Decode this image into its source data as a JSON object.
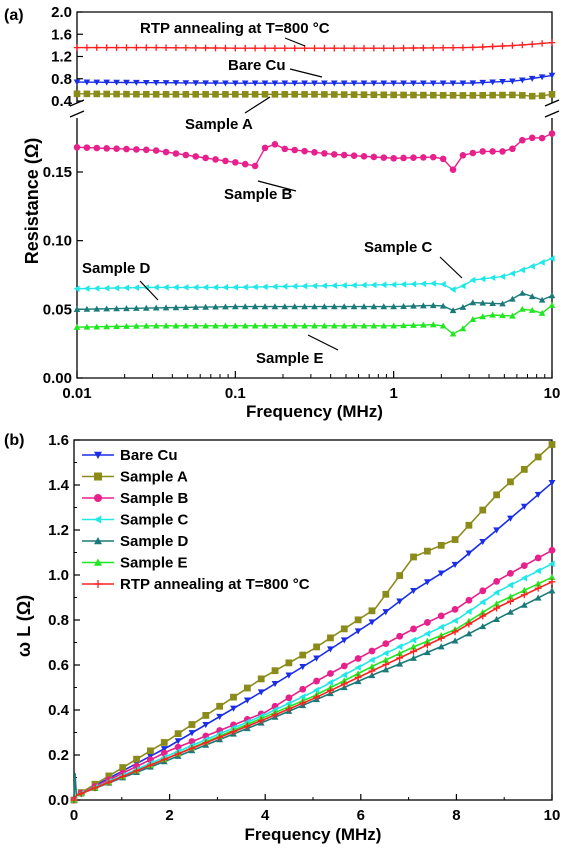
{
  "chart_data": [
    {
      "panel": "(a)",
      "type": "line",
      "xscale": "log",
      "xlabel": "Frequency (MHz)",
      "ylabel": "Resistance (Ω)",
      "xlim": [
        0.01,
        10
      ],
      "xticks": [
        "0.01",
        "0.1",
        "1",
        "10"
      ],
      "y_break": true,
      "ylim_lower": [
        0,
        0.19
      ],
      "ylim_upper": [
        0.4,
        2.0
      ],
      "yticks_lower": [
        "0.00",
        "0.05",
        "0.10",
        "0.15"
      ],
      "yticks_upper": [
        "0.4",
        "0.8",
        "1.2",
        "1.6",
        "2.0"
      ],
      "series": [
        {
          "name": "RTP annealing at T=800 °C",
          "color": "#ff2020",
          "marker": "plus",
          "x": [
            0.01,
            0.03,
            0.1,
            0.3,
            1,
            3,
            6,
            10
          ],
          "values": [
            1.36,
            1.36,
            1.35,
            1.35,
            1.35,
            1.36,
            1.4,
            1.45
          ]
        },
        {
          "name": "Bare Cu",
          "color": "#1a2ee8",
          "marker": "triangle-down",
          "x": [
            0.01,
            0.03,
            0.1,
            0.3,
            1,
            3,
            6,
            10
          ],
          "values": [
            0.74,
            0.73,
            0.72,
            0.72,
            0.72,
            0.72,
            0.76,
            0.86
          ]
        },
        {
          "name": "Sample A",
          "color": "#8b8b1a",
          "marker": "square",
          "x": [
            0.01,
            0.03,
            0.1,
            0.3,
            1,
            3,
            6,
            8,
            10
          ],
          "values": [
            0.53,
            0.52,
            0.52,
            0.52,
            0.51,
            0.5,
            0.51,
            0.48,
            0.52
          ]
        },
        {
          "name": "Sample B",
          "color": "#e8208c",
          "marker": "circle",
          "x": [
            0.01,
            0.03,
            0.1,
            0.14,
            0.16,
            0.2,
            0.4,
            1,
            2,
            2.4,
            2.7,
            3.5,
            5,
            6,
            7,
            8,
            9,
            10
          ],
          "values": [
            0.168,
            0.166,
            0.157,
            0.154,
            0.173,
            0.167,
            0.163,
            0.16,
            0.161,
            0.151,
            0.162,
            0.165,
            0.165,
            0.168,
            0.178,
            0.172,
            0.176,
            0.178
          ]
        },
        {
          "name": "Sample C",
          "color": "#20e8e8",
          "marker": "triangle-left",
          "x": [
            0.01,
            0.03,
            0.1,
            0.3,
            1,
            2,
            2.5,
            3,
            5,
            7,
            10
          ],
          "values": [
            0.065,
            0.066,
            0.066,
            0.067,
            0.068,
            0.069,
            0.063,
            0.071,
            0.074,
            0.08,
            0.087
          ]
        },
        {
          "name": "Sample D",
          "color": "#1a7a7a",
          "marker": "triangle-up",
          "x": [
            0.01,
            0.03,
            0.1,
            0.3,
            1,
            2,
            2.5,
            3,
            5,
            7,
            8,
            10
          ],
          "values": [
            0.05,
            0.051,
            0.052,
            0.052,
            0.052,
            0.053,
            0.048,
            0.055,
            0.054,
            0.064,
            0.055,
            0.06
          ]
        },
        {
          "name": "Sample E",
          "color": "#20e820",
          "marker": "triangle-up",
          "x": [
            0.01,
            0.03,
            0.1,
            0.3,
            1,
            2,
            2.5,
            3,
            4,
            6,
            7,
            8,
            10
          ],
          "values": [
            0.037,
            0.038,
            0.038,
            0.038,
            0.038,
            0.039,
            0.03,
            0.042,
            0.046,
            0.045,
            0.055,
            0.044,
            0.053
          ]
        }
      ],
      "annotations": [
        "RTP annealing at T=800 °C",
        "Bare Cu",
        "Sample A",
        "Sample B",
        "Sample C",
        "Sample D",
        "Sample E"
      ]
    },
    {
      "panel": "(b)",
      "type": "line",
      "xlabel": "Frequency (MHz)",
      "ylabel": "ω L (Ω)",
      "xlim": [
        0,
        10
      ],
      "ylim": [
        0,
        1.6
      ],
      "xticks": [
        "0",
        "2",
        "4",
        "6",
        "8",
        "10"
      ],
      "yticks": [
        "0.0",
        "0.2",
        "0.4",
        "0.6",
        "0.8",
        "1.0",
        "1.2",
        "1.4",
        "1.6"
      ],
      "legend": "top-left",
      "series": [
        {
          "name": "Bare Cu",
          "color": "#1a2ee8",
          "marker": "triangle-down",
          "x": [
            0,
            0.05,
            2,
            4,
            5,
            6.3,
            7.1,
            8,
            8.9,
            10
          ],
          "values": [
            0,
            0.02,
            0.24,
            0.49,
            0.62,
            0.8,
            0.93,
            1.05,
            1.21,
            1.41
          ]
        },
        {
          "name": "Sample A",
          "color": "#8b8b1a",
          "marker": "square",
          "x": [
            0,
            0.05,
            2,
            4,
            5,
            6.3,
            7.1,
            8,
            8.9,
            10
          ],
          "values": [
            0,
            0.02,
            0.27,
            0.55,
            0.67,
            0.85,
            1.08,
            1.16,
            1.37,
            1.58
          ]
        },
        {
          "name": "Sample B",
          "color": "#e8208c",
          "marker": "circle",
          "x": [
            0,
            0.05,
            2,
            4,
            5,
            6.3,
            7.1,
            8,
            8.9,
            10
          ],
          "values": [
            0,
            0.02,
            0.22,
            0.39,
            0.52,
            0.67,
            0.76,
            0.85,
            0.98,
            1.11
          ]
        },
        {
          "name": "Sample C",
          "color": "#20e8e8",
          "marker": "triangle-left",
          "x": [
            0,
            0.05,
            2,
            4,
            5,
            6.3,
            7.1,
            8,
            8.9,
            10
          ],
          "values": [
            0,
            0.02,
            0.2,
            0.38,
            0.48,
            0.63,
            0.71,
            0.8,
            0.93,
            1.05
          ]
        },
        {
          "name": "Sample D",
          "color": "#1a7a7a",
          "marker": "triangle-up",
          "x": [
            0,
            0.02,
            0.05,
            2,
            4,
            5,
            6.3,
            7.1,
            8,
            8.9,
            10
          ],
          "values": [
            0,
            0.12,
            0.02,
            0.18,
            0.35,
            0.44,
            0.56,
            0.63,
            0.71,
            0.81,
            0.93
          ]
        },
        {
          "name": "Sample E",
          "color": "#20e820",
          "marker": "triangle-up",
          "x": [
            0,
            0.05,
            2,
            4,
            5,
            6.3,
            7.1,
            8,
            8.9,
            10
          ],
          "values": [
            0,
            0.02,
            0.19,
            0.37,
            0.46,
            0.6,
            0.68,
            0.76,
            0.88,
            0.99
          ]
        },
        {
          "name": "RTP annealing at T=800 °C",
          "color": "#ff2020",
          "marker": "plus",
          "x": [
            0,
            0.05,
            2,
            4,
            5,
            6.3,
            7.1,
            8,
            8.9,
            10
          ],
          "values": [
            0,
            0.02,
            0.19,
            0.36,
            0.45,
            0.58,
            0.66,
            0.75,
            0.86,
            0.97
          ]
        }
      ]
    }
  ]
}
